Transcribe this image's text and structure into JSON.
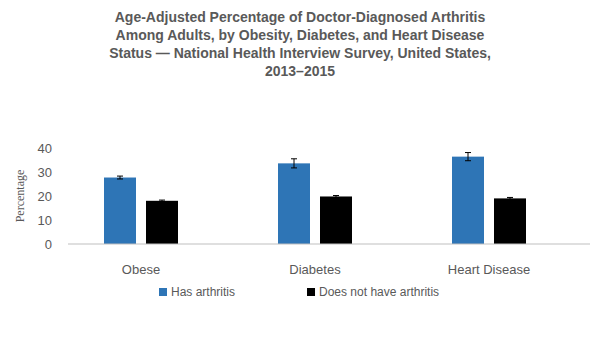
{
  "chart_data": {
    "type": "bar",
    "title": "Age-Adjusted Percentage of Doctor-Diagnosed Arthritis Among Adults, by Obesity, Diabetes, and Heart Disease Status — National Health Interview Survey, United States, 2013–2015",
    "y_label": "Percentage",
    "categories": [
      "Obese",
      "Diabetes",
      "Heart Disease"
    ],
    "series": [
      {
        "name": "Has arthritis",
        "color": "#2e75b6",
        "values": [
          27.7,
          33.6,
          36.4
        ],
        "errors": [
          0.6,
          1.9,
          1.7
        ]
      },
      {
        "name": "Does not have arthritis",
        "color": "#000000",
        "values": [
          18.0,
          19.8,
          19.0
        ],
        "errors": [
          0.3,
          0.4,
          0.4
        ]
      }
    ],
    "ylim": [
      0,
      40
    ],
    "yticks": [
      0,
      10,
      20,
      30,
      40
    ],
    "grid": false,
    "legend": "bottom"
  }
}
